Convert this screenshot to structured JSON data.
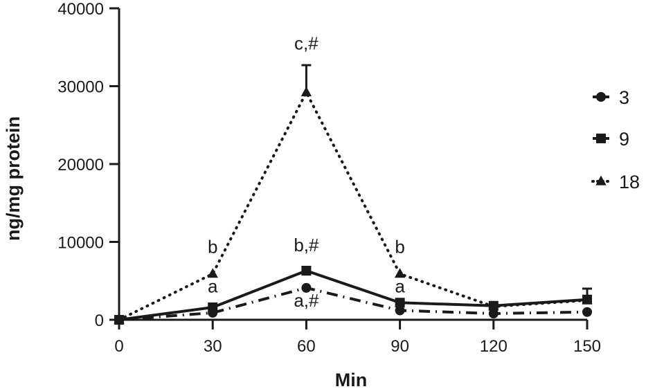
{
  "chart_data": {
    "type": "line",
    "title": "",
    "xlabel": "Min",
    "ylabel": "ng/mg protein",
    "x": [
      0,
      30,
      60,
      90,
      120,
      150
    ],
    "xticks": [
      0,
      30,
      60,
      90,
      120,
      150
    ],
    "yticks": [
      0,
      10000,
      20000,
      30000,
      40000
    ],
    "xlim": [
      0,
      150
    ],
    "ylim": [
      0,
      40000
    ],
    "grid": false,
    "legend_position": "right",
    "series": [
      {
        "name": "3",
        "marker": "circle",
        "line_style": "dash-dot",
        "color": "#1a1a1a",
        "values": [
          0,
          900,
          4100,
          1200,
          800,
          1000
        ],
        "error": [
          0,
          0,
          0,
          0,
          0,
          0
        ]
      },
      {
        "name": "9",
        "marker": "square",
        "line_style": "solid",
        "color": "#1a1a1a",
        "values": [
          0,
          1600,
          6300,
          2200,
          1800,
          2600
        ],
        "error": [
          0,
          0,
          500,
          0,
          0,
          1400
        ]
      },
      {
        "name": "18",
        "marker": "triangle",
        "line_style": "dotted",
        "color": "#1a1a1a",
        "values": [
          0,
          5900,
          29200,
          5900,
          1700,
          2500
        ],
        "error": [
          0,
          0,
          3500,
          0,
          0,
          0
        ]
      }
    ],
    "annotations": [
      {
        "text": "b",
        "x": 30,
        "y": 8600
      },
      {
        "text": "a",
        "x": 30,
        "y": 3500
      },
      {
        "text": "c,#",
        "x": 60,
        "y": 34700
      },
      {
        "text": "b,#",
        "x": 60,
        "y": 8800
      },
      {
        "text": "a,#",
        "x": 60,
        "y": 1700
      },
      {
        "text": "b",
        "x": 90,
        "y": 8600
      },
      {
        "text": "a",
        "x": 90,
        "y": 3500
      }
    ]
  }
}
